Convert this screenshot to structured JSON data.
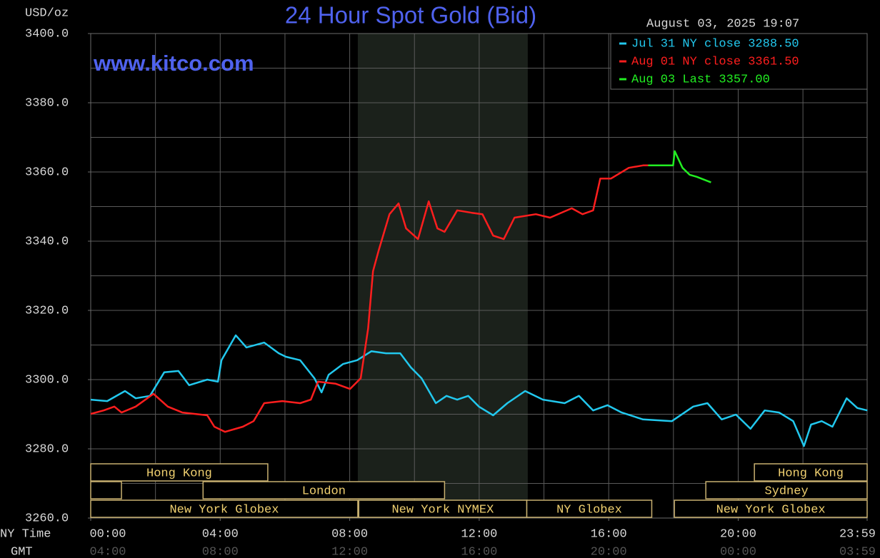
{
  "chart_data": {
    "type": "line",
    "title": "24 Hour Spot Gold (Bid)",
    "y_label": "USD/oz",
    "timestamp": "August 03, 2025 19:07",
    "watermark": "www.kitco.com",
    "x_row_labels": [
      "NY Time",
      "GMT"
    ],
    "xlim": [
      0,
      23.983
    ],
    "xticks": [
      {
        "value": 0,
        "label": "00:00"
      },
      {
        "value": 4,
        "label": "04:00"
      },
      {
        "value": 8,
        "label": "08:00"
      },
      {
        "value": 12,
        "label": "12:00"
      },
      {
        "value": 16,
        "label": "16:00"
      },
      {
        "value": 20,
        "label": "20:00"
      },
      {
        "value": 23.983,
        "label": "23:59"
      }
    ],
    "gmt_labels": [
      "04:00",
      "08:00",
      "12:00",
      "16:00",
      "20:00",
      "00:00",
      "03:59"
    ],
    "xgrid": [
      2,
      4,
      6,
      8,
      10,
      12,
      14,
      16,
      18,
      20,
      22
    ],
    "ylim": [
      3260,
      3400
    ],
    "yticks": [
      {
        "value": 3260,
        "label": "3260.0"
      },
      {
        "value": 3280,
        "label": "3280.0"
      },
      {
        "value": 3300,
        "label": "3300.0"
      },
      {
        "value": 3320,
        "label": "3320.0"
      },
      {
        "value": 3340,
        "label": "3340.0"
      },
      {
        "value": 3360,
        "label": "3360.0"
      },
      {
        "value": 3380,
        "label": "3380.0"
      },
      {
        "value": 3400,
        "label": "3400.0"
      }
    ],
    "ygrid": [
      3270,
      3280,
      3290,
      3300,
      3310,
      3320,
      3330,
      3340,
      3350,
      3360,
      3370,
      3380,
      3390
    ],
    "grid": true,
    "legend": "top-right",
    "shade": [
      8.25,
      13.5
    ],
    "sessions": [
      [
        {
          "label": "Hong Kong",
          "start": 0,
          "end": 5.47
        },
        {
          "label": "Hong Kong",
          "start": 20.5,
          "end": 23.983
        }
      ],
      [
        {
          "start": 0,
          "end": 0.95
        },
        {
          "label": "London",
          "start": 3.47,
          "end": 10.93
        },
        {
          "label": "Sydney",
          "start": 19,
          "end": 23.983
        }
      ],
      [
        {
          "label": "New York Globex",
          "start": 0,
          "end": 8.25
        },
        {
          "label": "New York NYMEX",
          "start": 8.28,
          "end": 13.47
        },
        {
          "label": "NY Globex",
          "start": 13.47,
          "end": 17.33
        },
        {
          "label": "New York Globex",
          "start": 18.03,
          "end": 23.983
        }
      ]
    ],
    "series": [
      {
        "name": "Jul 31 NY close 3288.50",
        "color": "#22c8ee",
        "x": [
          0,
          0.51,
          1.06,
          1.39,
          1.83,
          2.27,
          2.71,
          3.04,
          3.6,
          3.93,
          4.04,
          4.48,
          4.81,
          5.36,
          5.81,
          6.03,
          6.47,
          6.91,
          7.13,
          7.35,
          7.79,
          8.23,
          8.67,
          9.12,
          9.56,
          9.89,
          10.22,
          10.66,
          10.99,
          11.32,
          11.66,
          11.99,
          12.43,
          12.87,
          13.42,
          13.97,
          14.64,
          15.08,
          15.52,
          15.96,
          16.4,
          17.06,
          17.95,
          18.61,
          19.05,
          19.49,
          19.93,
          20.38,
          20.82,
          21.26,
          21.7,
          22.03,
          22.25,
          22.58,
          22.91,
          23.35,
          23.68,
          23.99
        ],
        "values": [
          3294.2,
          3293.8,
          3296.7,
          3294.6,
          3295.3,
          3302.1,
          3302.5,
          3298.4,
          3300.0,
          3299.4,
          3305.6,
          3312.8,
          3309.3,
          3310.7,
          3307.6,
          3306.6,
          3305.6,
          3300.4,
          3296.3,
          3301.4,
          3304.5,
          3305.6,
          3308.2,
          3307.6,
          3307.6,
          3303.5,
          3300.4,
          3293.2,
          3295.3,
          3294.2,
          3295.3,
          3292.2,
          3289.7,
          3293.2,
          3296.7,
          3294.2,
          3293.2,
          3295.3,
          3291.1,
          3292.6,
          3290.5,
          3288.5,
          3288.0,
          3292.2,
          3293.2,
          3288.5,
          3289.9,
          3285.8,
          3291.1,
          3290.5,
          3288.0,
          3280.8,
          3287.0,
          3288.0,
          3286.4,
          3294.6,
          3291.8,
          3291.1
        ]
      },
      {
        "name": "Aug 01 NY close 3361.50",
        "color": "#ff1e1e",
        "x": [
          0,
          0.4,
          0.73,
          0.95,
          1.39,
          1.94,
          2.38,
          2.83,
          3.6,
          3.82,
          4.15,
          4.7,
          5.03,
          5.36,
          5.92,
          6.47,
          6.8,
          7.02,
          7.57,
          8.01,
          8.34,
          8.57,
          8.72,
          8.9,
          9.23,
          9.51,
          9.74,
          10.11,
          10.44,
          10.71,
          10.93,
          11.32,
          11.77,
          12.1,
          12.43,
          12.76,
          13.09,
          13.75,
          14.19,
          14.86,
          15.19,
          15.52,
          15.74,
          16.07,
          16.62,
          17.06,
          17.22
        ],
        "values": [
          3290.1,
          3291.1,
          3292.2,
          3290.5,
          3292.2,
          3295.9,
          3292.2,
          3290.5,
          3289.7,
          3286.4,
          3284.9,
          3286.4,
          3288.0,
          3293.2,
          3293.8,
          3293.2,
          3294.2,
          3299.4,
          3298.8,
          3297.3,
          3300.4,
          3314.8,
          3331.3,
          3337.5,
          3347.8,
          3350.9,
          3343.7,
          3340.6,
          3351.5,
          3343.7,
          3342.7,
          3348.9,
          3348.2,
          3347.8,
          3341.6,
          3340.6,
          3346.8,
          3347.8,
          3346.8,
          3349.5,
          3347.8,
          3348.9,
          3358.1,
          3358.1,
          3361.2,
          3361.9,
          3361.9
        ]
      },
      {
        "name": "Aug 03 Last 3357.00",
        "color": "#22ee22",
        "x": [
          17.22,
          17.99,
          18.04,
          18.28,
          18.5,
          18.72,
          19.16
        ],
        "values": [
          3361.9,
          3361.9,
          3366.0,
          3361.2,
          3359.2,
          3358.6,
          3357.0
        ]
      }
    ]
  }
}
